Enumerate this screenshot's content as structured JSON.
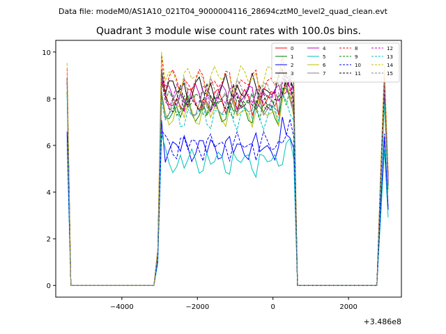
{
  "chart_data": {
    "type": "line",
    "suptitle": "Data file: modeM0/AS1A10_021T04_9000004116_28694cztM0_level2_quad_clean.evt",
    "title": "Quadrant 3 module wise count rates with 100.0s bins.",
    "xlabel": "",
    "ylabel": "",
    "x_offset_label": "+3.486e8",
    "xlim": [
      -5750,
      3400
    ],
    "ylim": [
      -0.5,
      10.5
    ],
    "x_ticks": [
      -4000,
      -2000,
      0,
      2000
    ],
    "x_tick_labels": [
      "−4000",
      "−2000",
      "0",
      "2000"
    ],
    "y_ticks": [
      0,
      2,
      4,
      6,
      8,
      10
    ],
    "y_tick_labels": [
      "0",
      "2",
      "4",
      "6",
      "8",
      "10"
    ],
    "legend_location": "top-right",
    "segments": [
      {
        "name": "gap-1",
        "start": -5350,
        "end": -3150
      },
      {
        "name": "gap-2",
        "start": 560,
        "end": 2750
      }
    ],
    "series": [
      {
        "name": "0",
        "color": "#ff0000",
        "style": "solid",
        "level": 7.9
      },
      {
        "name": "1",
        "color": "#008000",
        "style": "solid",
        "level": 7.5
      },
      {
        "name": "2",
        "color": "#0000ff",
        "style": "solid",
        "level": 5.9
      },
      {
        "name": "3",
        "color": "#000000",
        "style": "solid",
        "level": 8.4
      },
      {
        "name": "4",
        "color": "#bf00bf",
        "style": "solid",
        "level": 8.1
      },
      {
        "name": "5",
        "color": "#00bfbf",
        "style": "solid",
        "level": 5.3
      },
      {
        "name": "6",
        "color": "#bfbf00",
        "style": "solid",
        "level": 7.4
      },
      {
        "name": "7",
        "color": "#808080",
        "style": "solid",
        "level": 7.7
      },
      {
        "name": "8",
        "color": "#ff0000",
        "style": "dashed",
        "level": 8.7
      },
      {
        "name": "9",
        "color": "#008000",
        "style": "dashed",
        "level": 7.8
      },
      {
        "name": "10",
        "color": "#0000ff",
        "style": "dashed",
        "level": 6.0
      },
      {
        "name": "11",
        "color": "#000000",
        "style": "dashed",
        "level": 7.9
      },
      {
        "name": "12",
        "color": "#bf00bf",
        "style": "dashed",
        "level": 8.0
      },
      {
        "name": "13",
        "color": "#00bfbf",
        "style": "dashed",
        "level": 7.3
      },
      {
        "name": "14",
        "color": "#bfbf00",
        "style": "dashed",
        "level": 8.9
      },
      {
        "name": "15",
        "color": "#808080",
        "style": "dashed",
        "level": 8.2
      }
    ]
  }
}
